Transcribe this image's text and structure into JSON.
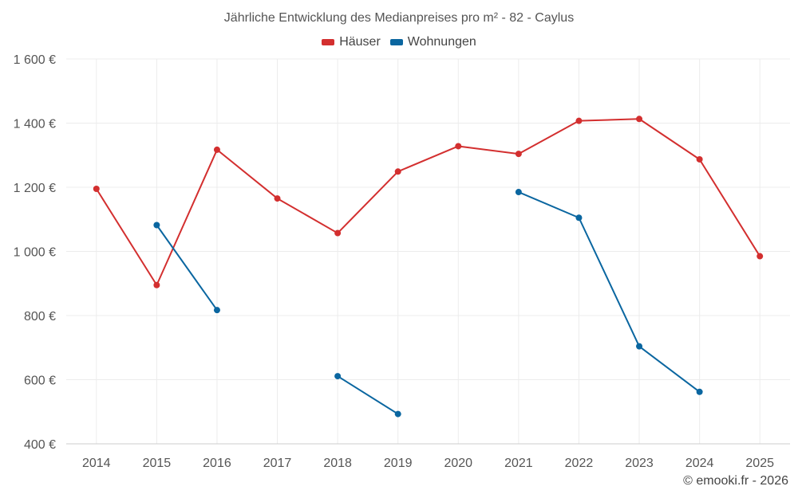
{
  "chart_data": {
    "type": "line",
    "title": "Jährliche Entwicklung des Medianpreises pro m² - 82 - Caylus",
    "categories": [
      "2014",
      "2015",
      "2016",
      "2017",
      "2018",
      "2019",
      "2020",
      "2021",
      "2022",
      "2023",
      "2024",
      "2025"
    ],
    "ylim": [
      400,
      1600
    ],
    "yticks": [
      400,
      600,
      800,
      1000,
      1200,
      1400,
      1600
    ],
    "ytick_labels": [
      "400 €",
      "600 €",
      "800 €",
      "1 000 €",
      "1 200 €",
      "1 400 €",
      "1 600 €"
    ],
    "grid": true,
    "legend_position": "top-center",
    "series": [
      {
        "name": "Häuser",
        "color": "#d32f2f",
        "values": [
          1195,
          895,
          1317,
          1165,
          1057,
          1249,
          1328,
          1304,
          1407,
          1413,
          1287,
          985
        ]
      },
      {
        "name": "Wohnungen",
        "color": "#0a66a0",
        "values": [
          null,
          1082,
          817,
          null,
          611,
          493,
          null,
          1185,
          1105,
          704,
          562,
          null
        ]
      }
    ]
  },
  "credit": "© emooki.fr - 2026"
}
